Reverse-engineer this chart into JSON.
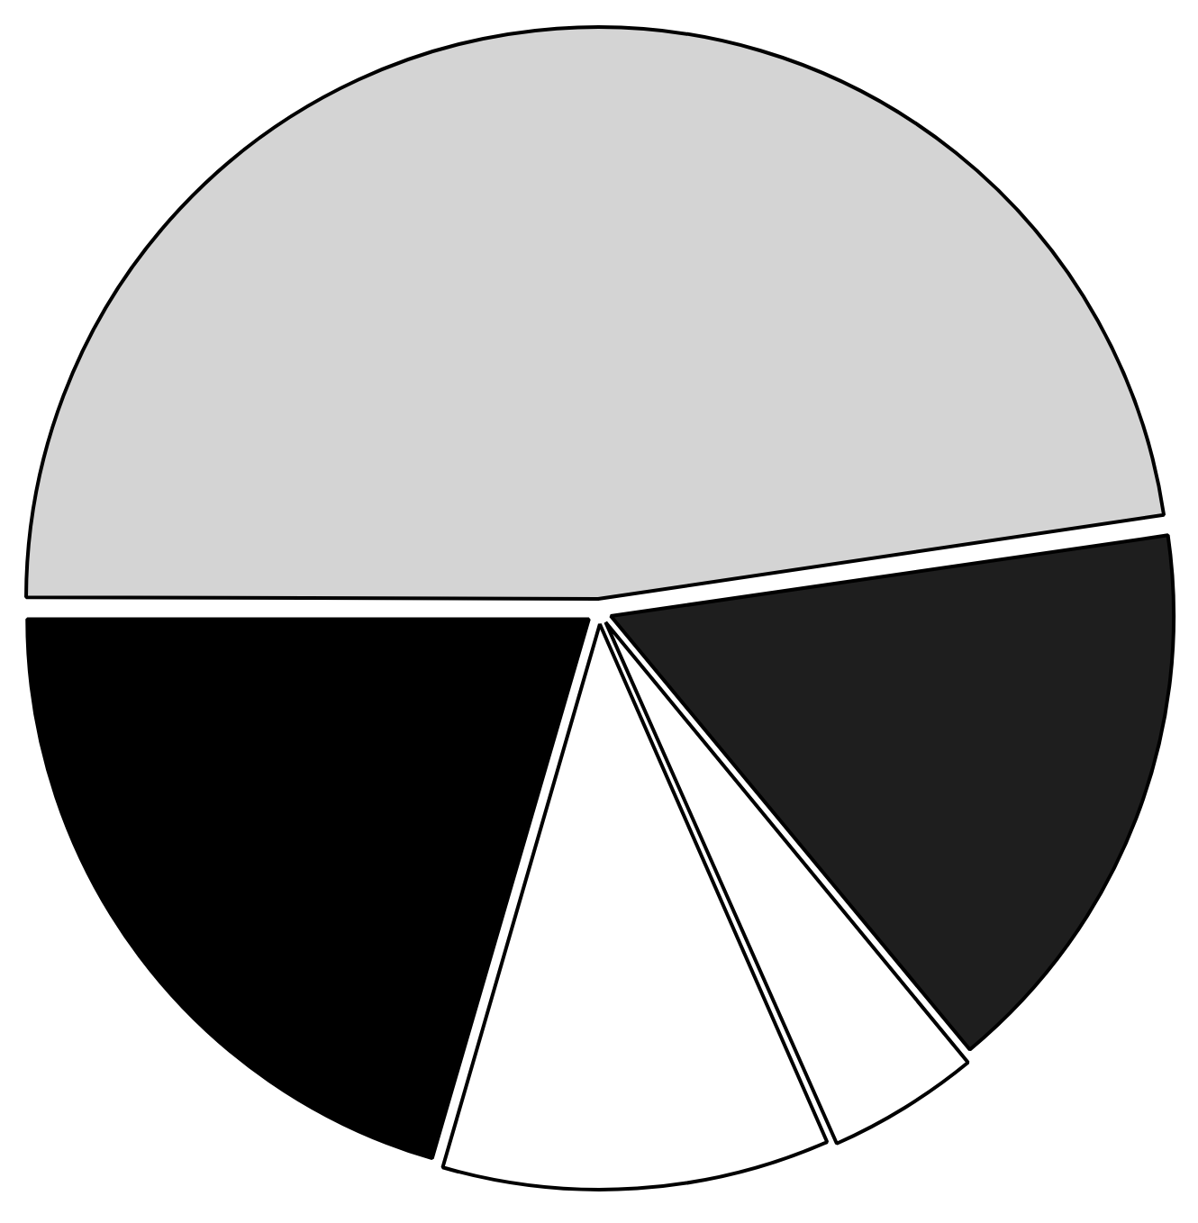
{
  "chart_data": {
    "type": "pie",
    "categories": [
      null,
      null,
      null,
      null,
      null
    ],
    "values": [
      47.7,
      16.3,
      4.4,
      11.1,
      20.5
    ],
    "colors": [
      "#d4d4d4",
      "#1e1e1e",
      "#ffffff",
      "#ffffff",
      "#000000"
    ]
  }
}
